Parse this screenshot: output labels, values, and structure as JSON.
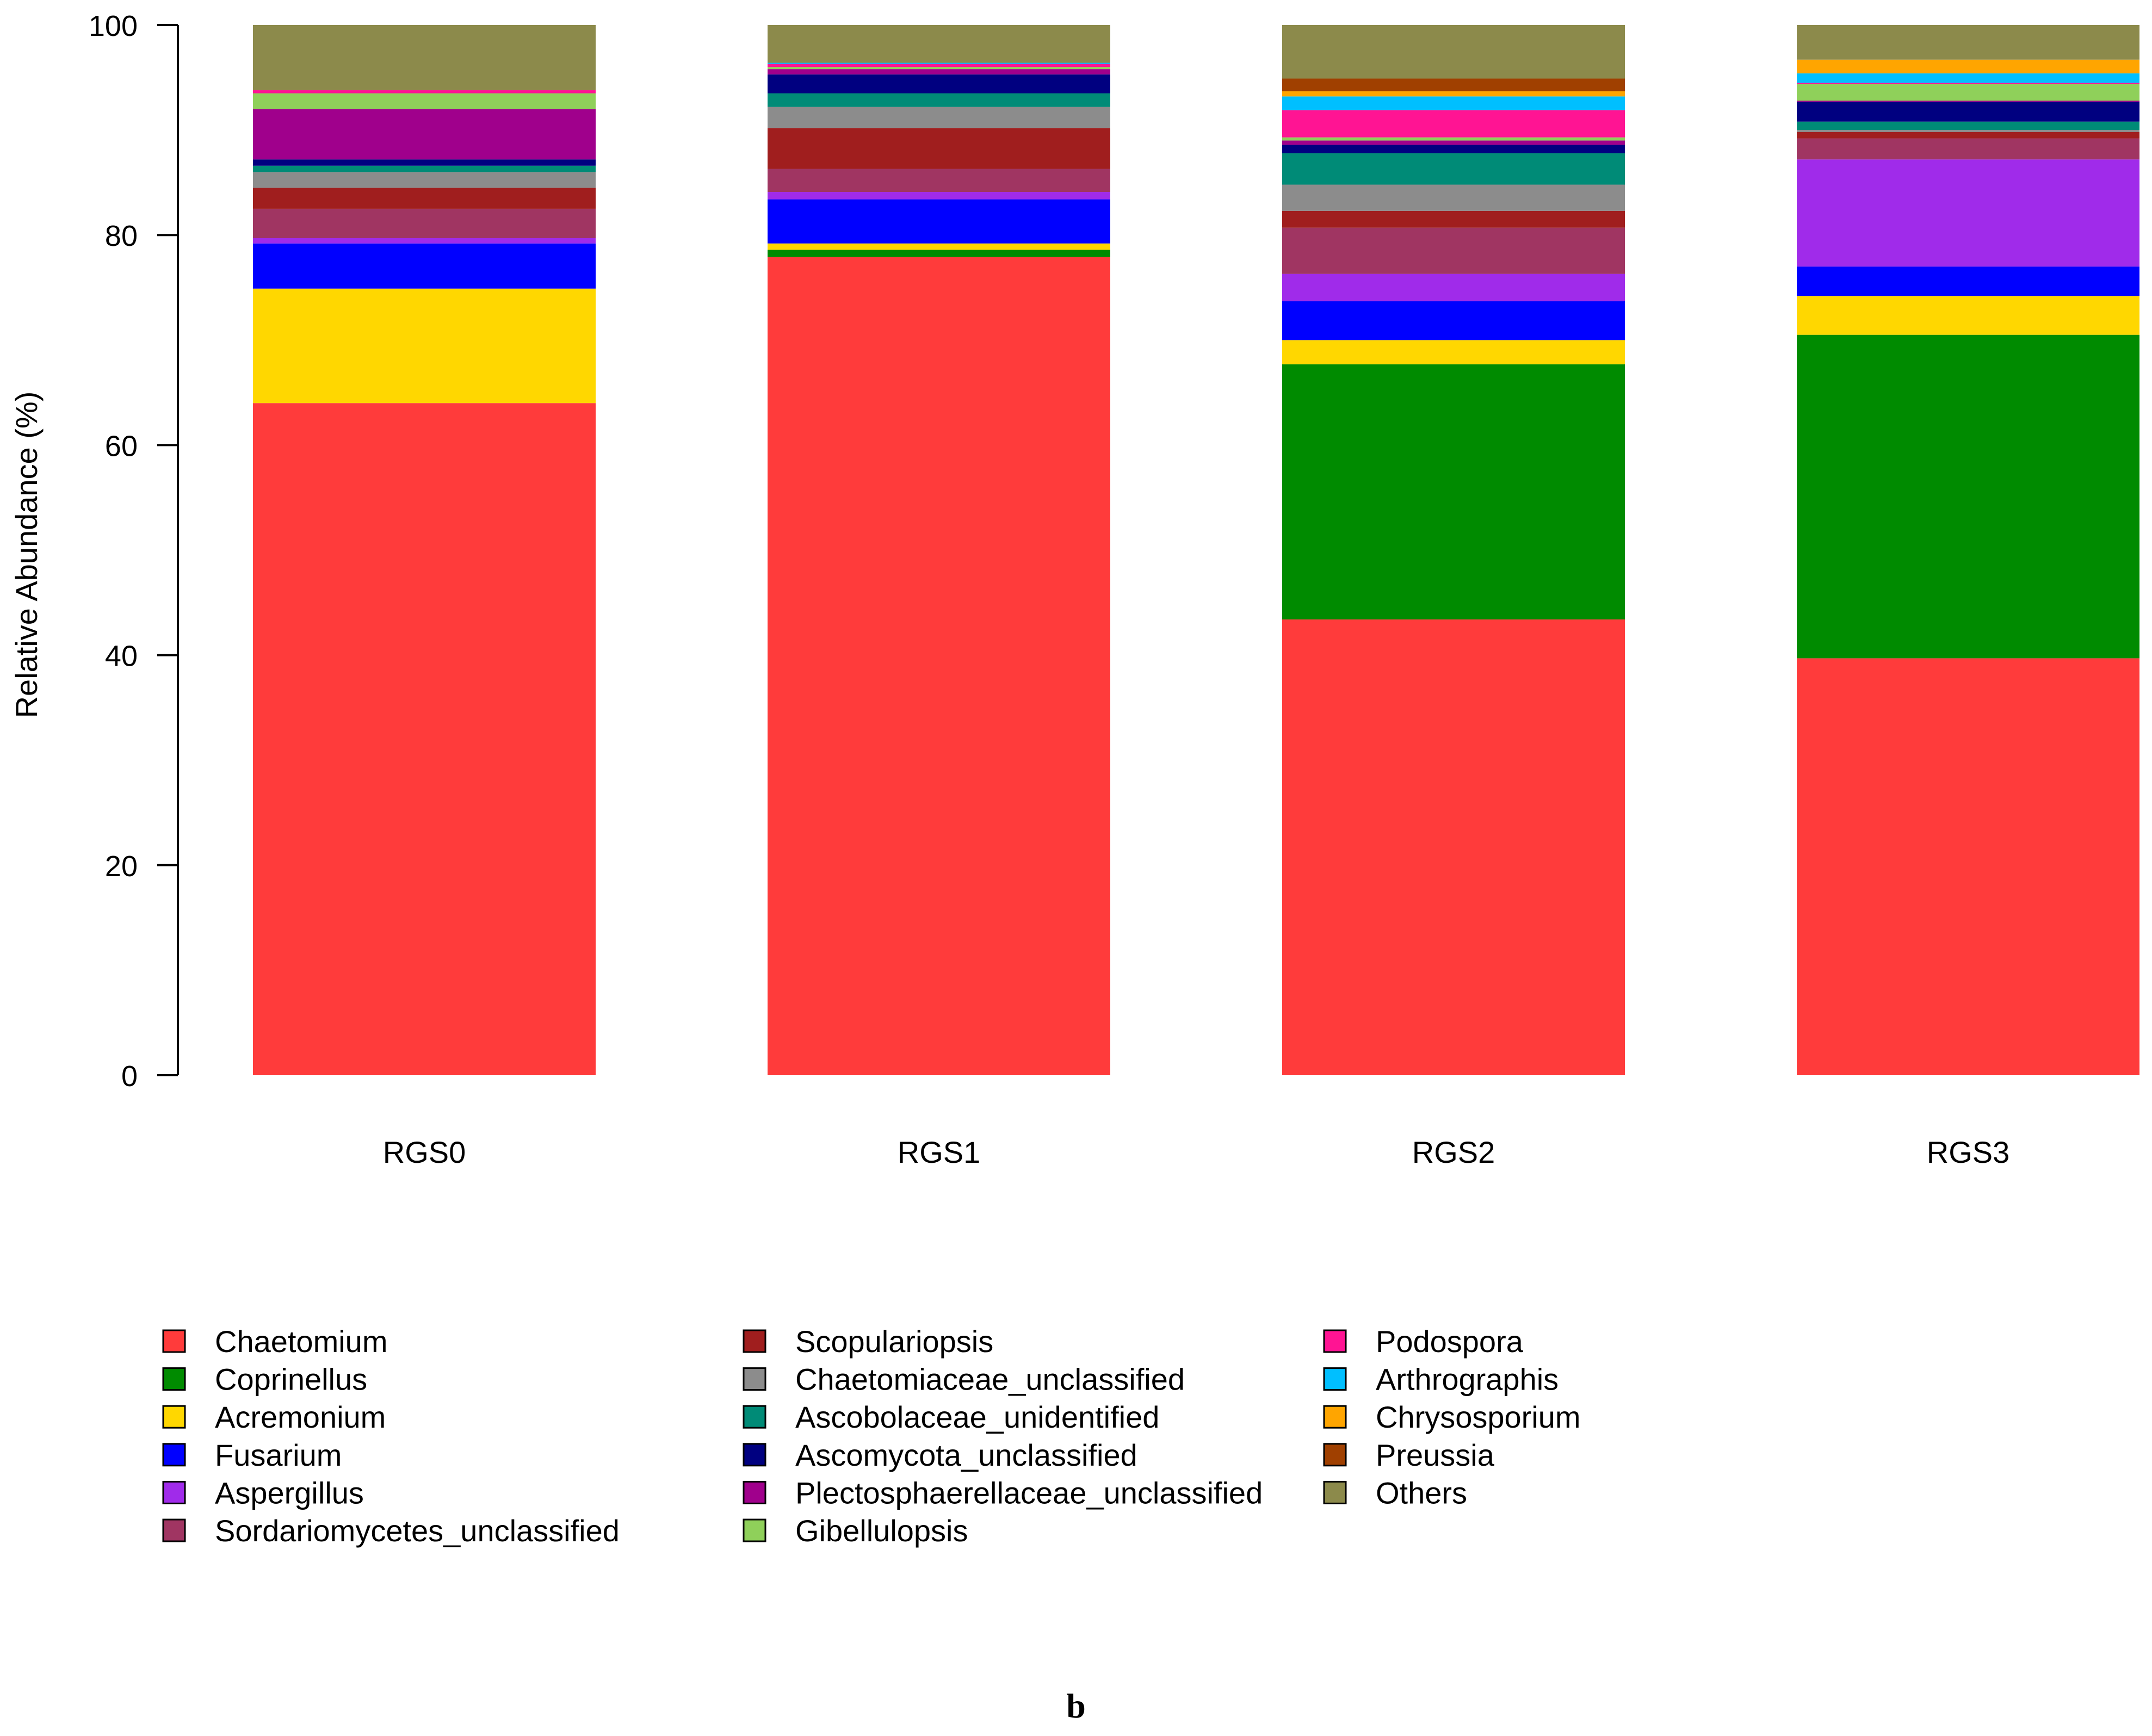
{
  "figure": {
    "label": "b"
  },
  "chart_data": {
    "type": "bar",
    "stacked": true,
    "title": "",
    "xlabel": "",
    "ylabel": "Relative Abundance (%)",
    "ylim": [
      0,
      100
    ],
    "yticks": [
      0,
      20,
      40,
      60,
      80,
      100
    ],
    "grid": false,
    "legend_position": "bottom",
    "categories": [
      "RGS0",
      "RGS1",
      "RGS2",
      "RGS3"
    ],
    "series": [
      {
        "name": "Chaetomium",
        "color": "#FF3B3B",
        "values": [
          64.0,
          77.9,
          43.4,
          39.7
        ]
      },
      {
        "name": "Coprinellus",
        "color": "#008B00",
        "values": [
          0.0,
          0.7,
          24.3,
          30.8
        ]
      },
      {
        "name": "Acremonium",
        "color": "#FFD700",
        "values": [
          10.9,
          0.6,
          2.3,
          3.7
        ]
      },
      {
        "name": "Fusarium",
        "color": "#0000FF",
        "values": [
          4.3,
          4.2,
          3.7,
          2.8
        ]
      },
      {
        "name": "Aspergillus",
        "color": "#A02BEA",
        "values": [
          0.5,
          0.7,
          2.6,
          10.2
        ]
      },
      {
        "name": "Sordariomycetes_unclassified",
        "color": "#A03562",
        "values": [
          2.8,
          2.2,
          4.4,
          2.0
        ]
      },
      {
        "name": "Scopulariopsis",
        "color": "#A01E1E",
        "values": [
          2.0,
          3.9,
          1.6,
          0.6
        ]
      },
      {
        "name": "Chaetomiaceae_unclassified",
        "color": "#8C8C8C",
        "values": [
          1.5,
          2.0,
          2.5,
          0.2
        ]
      },
      {
        "name": "Ascobolaceae_unidentified",
        "color": "#008B77",
        "values": [
          0.6,
          1.3,
          3.0,
          0.8
        ]
      },
      {
        "name": "Ascomycota_unclassified",
        "color": "#000080",
        "values": [
          0.6,
          1.8,
          0.8,
          1.9
        ]
      },
      {
        "name": "Plectosphaerellaceae_unclassified",
        "color": "#A0008C",
        "values": [
          4.8,
          0.5,
          0.4,
          0.1
        ]
      },
      {
        "name": "Gibellulopsis",
        "color": "#8FD05A",
        "values": [
          1.5,
          0.2,
          0.3,
          1.6
        ]
      },
      {
        "name": "Podospora",
        "color": "#FF1493",
        "values": [
          0.3,
          0.3,
          2.6,
          0.1
        ]
      },
      {
        "name": "Arthrographis",
        "color": "#00BFFF",
        "values": [
          0.0,
          0.1,
          1.3,
          0.9
        ]
      },
      {
        "name": "Chrysosporium",
        "color": "#FFA500",
        "values": [
          0.0,
          0.0,
          0.5,
          1.3
        ]
      },
      {
        "name": "Preussia",
        "color": "#A04000",
        "values": [
          0.0,
          0.0,
          1.2,
          0.0
        ]
      },
      {
        "name": "Others",
        "color": "#8C8A4B",
        "values": [
          6.2,
          3.6,
          5.1,
          3.3
        ]
      }
    ]
  }
}
